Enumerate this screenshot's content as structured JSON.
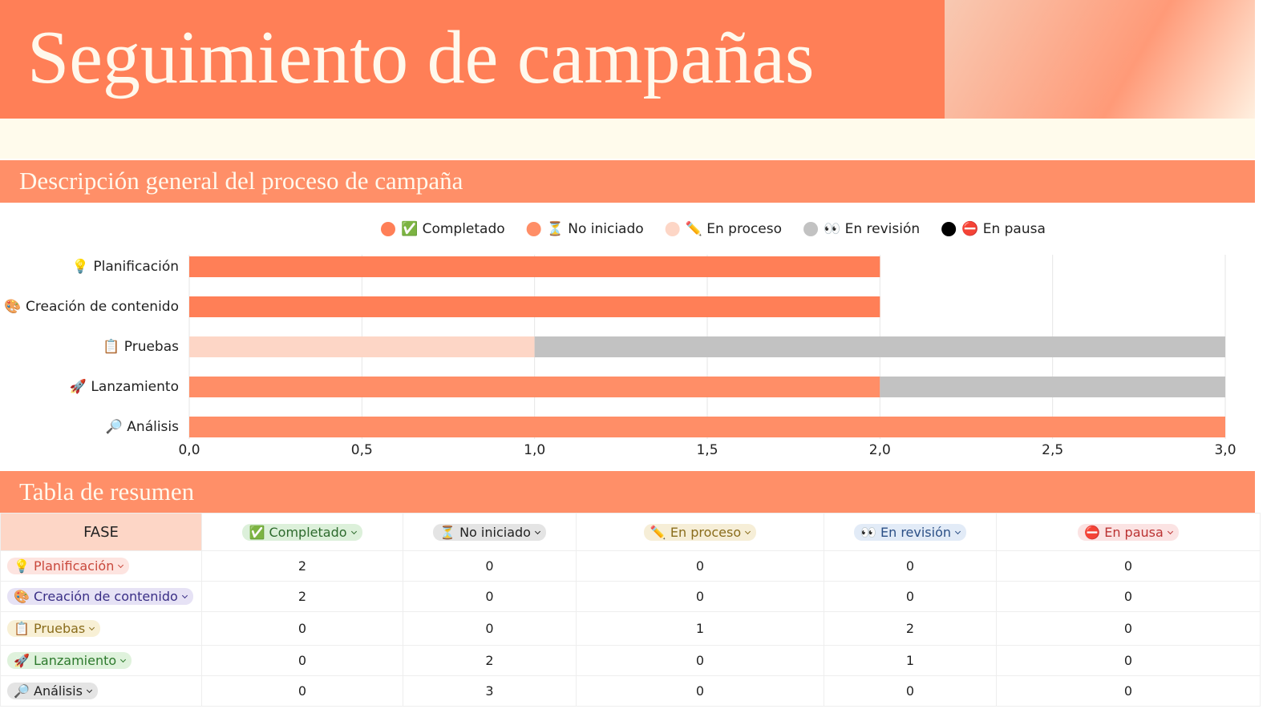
{
  "header": {
    "title": "Seguimiento de campañas"
  },
  "chart_section": {
    "title": "Descripción general del proceso de campaña"
  },
  "chart_data": {
    "type": "stacked-bar-horizontal",
    "categories": [
      "💡 Planificación",
      "🎨 Creación de contenido",
      "📋 Pruebas",
      "🚀 Lanzamiento",
      "🔎 Análisis"
    ],
    "series": [
      {
        "name": "✅ Completado",
        "color": "#ff7f57",
        "values": [
          2,
          2,
          0,
          0,
          0
        ]
      },
      {
        "name": "⏳ No iniciado",
        "color": "#ff8e67",
        "values": [
          0,
          0,
          0,
          2,
          3
        ]
      },
      {
        "name": "✏️ En proceso",
        "color": "#fdd6c6",
        "values": [
          0,
          0,
          1,
          0,
          0
        ]
      },
      {
        "name": "👀 En revisión",
        "color": "#c2c2c2",
        "values": [
          0,
          0,
          2,
          1,
          0
        ]
      },
      {
        "name": "⛔ En pausa",
        "color": "#000000",
        "values": [
          0,
          0,
          0,
          0,
          0
        ]
      }
    ],
    "xlim": [
      0,
      3
    ],
    "xticks": [
      {
        "value": 0,
        "label": "0,0"
      },
      {
        "value": 0.5,
        "label": "0,5"
      },
      {
        "value": 1,
        "label": "1,0"
      },
      {
        "value": 1.5,
        "label": "1,5"
      },
      {
        "value": 2,
        "label": "2,0"
      },
      {
        "value": 2.5,
        "label": "2,5"
      },
      {
        "value": 3,
        "label": "3,0"
      }
    ],
    "grid": true,
    "legend": "top"
  },
  "table_section": {
    "title": "Tabla de resumen"
  },
  "table": {
    "columns": [
      "FASE",
      "✅ Completado",
      "⏳ No iniciado",
      "✏️ En proceso",
      "👀 En revisión",
      "⛔ En pausa"
    ],
    "rows": [
      [
        "💡 Planificación",
        2,
        0,
        0,
        0,
        0
      ],
      [
        "🎨 Creación de contenido",
        2,
        0,
        0,
        0,
        0
      ],
      [
        "📋 Pruebas",
        0,
        0,
        1,
        2,
        0
      ],
      [
        "🚀 Lanzamiento",
        0,
        2,
        0,
        1,
        0
      ],
      [
        "🔎 Análisis",
        0,
        3,
        0,
        0,
        0
      ]
    ]
  }
}
